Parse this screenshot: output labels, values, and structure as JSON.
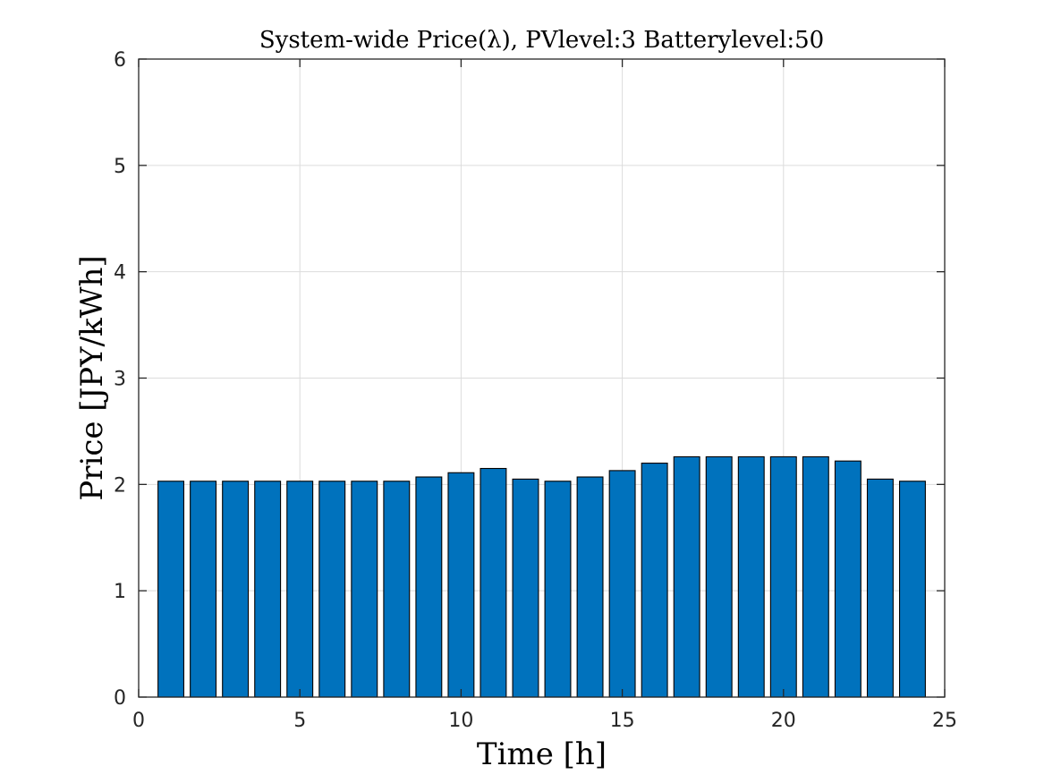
{
  "chart_data": {
    "type": "bar",
    "title": "System-wide Price(λ), PVlevel:3 Batterylevel:50",
    "xlabel": "Time [h]",
    "ylabel": "Price [JPY/kWh]",
    "xlim": [
      0,
      25
    ],
    "ylim": [
      0,
      6
    ],
    "xticks": [
      0,
      5,
      10,
      15,
      20,
      25
    ],
    "yticks": [
      0,
      1,
      2,
      3,
      4,
      5,
      6
    ],
    "xtick_labels": [
      "0",
      "5",
      "10",
      "15",
      "20",
      "25"
    ],
    "ytick_labels": [
      "0",
      "1",
      "2",
      "3",
      "4",
      "5",
      "6"
    ],
    "grid": true,
    "bar_color": "#0072BD",
    "x": [
      1,
      2,
      3,
      4,
      5,
      6,
      7,
      8,
      9,
      10,
      11,
      12,
      13,
      14,
      15,
      16,
      17,
      18,
      19,
      20,
      21,
      22,
      23,
      24
    ],
    "values": [
      2.03,
      2.03,
      2.03,
      2.03,
      2.03,
      2.03,
      2.03,
      2.03,
      2.07,
      2.11,
      2.15,
      2.05,
      2.03,
      2.07,
      2.13,
      2.2,
      2.26,
      2.26,
      2.26,
      2.26,
      2.26,
      2.22,
      2.05,
      2.03
    ]
  }
}
